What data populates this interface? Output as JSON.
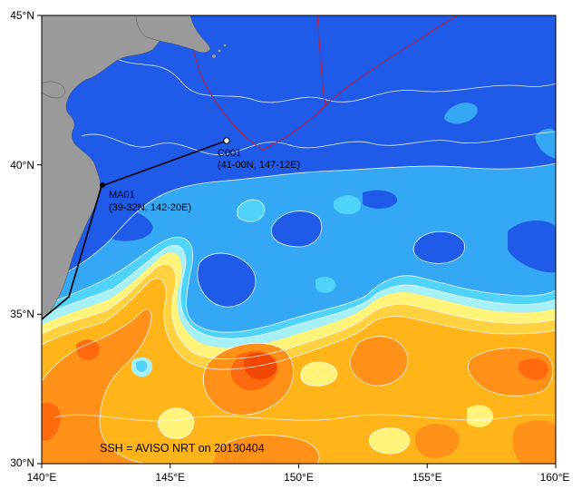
{
  "map": {
    "caption": "SSH = AVISO NRT on 20130404",
    "lon_labels": [
      "140°E",
      "145°E",
      "150°E",
      "155°E",
      "160°E"
    ],
    "lat_labels": [
      "45°N",
      "40°N",
      "35°N",
      "30°N"
    ],
    "stations": [
      {
        "name": "C001",
        "coords": "(41-00N, 147-12E)"
      },
      {
        "name": "MA01",
        "coords": "(39-32N, 142-20E)"
      }
    ],
    "colors": {
      "land": "#9a9a9a",
      "level_1": "#1f5ae8",
      "level_2": "#35a8f5",
      "level_3": "#4fd3f8",
      "level_4": "#a6f0f6",
      "level_5": "#fff37a",
      "level_6": "#ffd040",
      "level_7": "#ffb41a",
      "level_8": "#ff9118",
      "level_9": "#ff6a0e",
      "level_10": "#f04800",
      "boundary": "#c0203a",
      "contour": "#ffffff"
    }
  }
}
